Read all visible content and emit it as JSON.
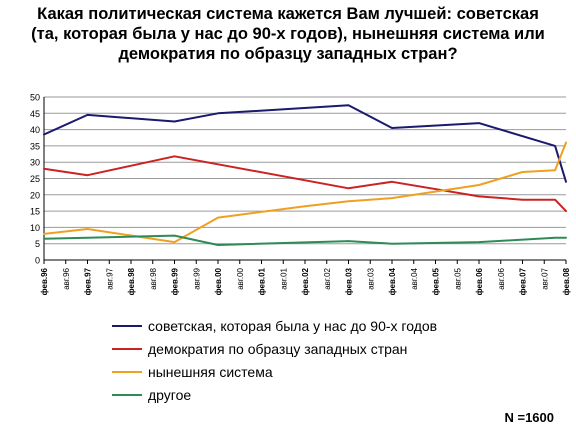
{
  "chart_data": {
    "type": "line",
    "title_lines": [
      "Какая политическая система кажется Вам лучшей: советская",
      "(та, которая была у нас до 90-х годов), нынешняя система или",
      "демократия по образцу западных стран?"
    ],
    "ylim": [
      0,
      50
    ],
    "yticks": [
      0,
      5,
      10,
      15,
      20,
      25,
      30,
      35,
      40,
      45,
      50
    ],
    "grid": true,
    "legend_position": "bottom",
    "categories": [
      "фев.96",
      "авг.96",
      "фев.97",
      "авг.97",
      "фев.98",
      "авг.98",
      "фев.99",
      "авг.99",
      "фев.00",
      "авг.00",
      "фев.01",
      "авг.01",
      "фев.02",
      "авг.02",
      "фев.03",
      "авг.03",
      "фев.04",
      "авг.04",
      "фев.05",
      "авг.05",
      "фев.06",
      "авг.06",
      "фев.07",
      "авг.07",
      "фев.08"
    ],
    "series": [
      {
        "name": "советская, которая была у нас до 90-х годов",
        "color": "#1a1a6e",
        "points": [
          [
            0,
            38.5
          ],
          [
            2,
            44.5
          ],
          [
            6,
            42.5
          ],
          [
            8,
            45
          ],
          [
            14,
            47.5
          ],
          [
            16,
            40.5
          ],
          [
            20,
            42
          ],
          [
            23.5,
            35
          ],
          [
            24,
            24
          ]
        ]
      },
      {
        "name": "демократия по образцу западных стран",
        "color": "#cc2222",
        "points": [
          [
            0,
            28
          ],
          [
            2,
            26
          ],
          [
            6,
            31.8
          ],
          [
            14,
            22
          ],
          [
            16,
            24
          ],
          [
            20,
            19.5
          ],
          [
            22,
            18.5
          ],
          [
            23.5,
            18.5
          ],
          [
            24,
            15
          ]
        ]
      },
      {
        "name": "нынешняя система",
        "color": "#f0a020",
        "points": [
          [
            0,
            8
          ],
          [
            2,
            9.5
          ],
          [
            6,
            5.5
          ],
          [
            8,
            13
          ],
          [
            12,
            16.5
          ],
          [
            14,
            18
          ],
          [
            16,
            19
          ],
          [
            20,
            23
          ],
          [
            22,
            27
          ],
          [
            23.5,
            27.5
          ],
          [
            24,
            36
          ]
        ]
      },
      {
        "name": "другое",
        "color": "#2e8b57",
        "points": [
          [
            0,
            6.5
          ],
          [
            2,
            6.8
          ],
          [
            6,
            7.5
          ],
          [
            8,
            4.6
          ],
          [
            14,
            5.8
          ],
          [
            16,
            5
          ],
          [
            20,
            5.5
          ],
          [
            23.5,
            6.8
          ],
          [
            24,
            6.8
          ]
        ]
      }
    ]
  },
  "note": "N =1600"
}
